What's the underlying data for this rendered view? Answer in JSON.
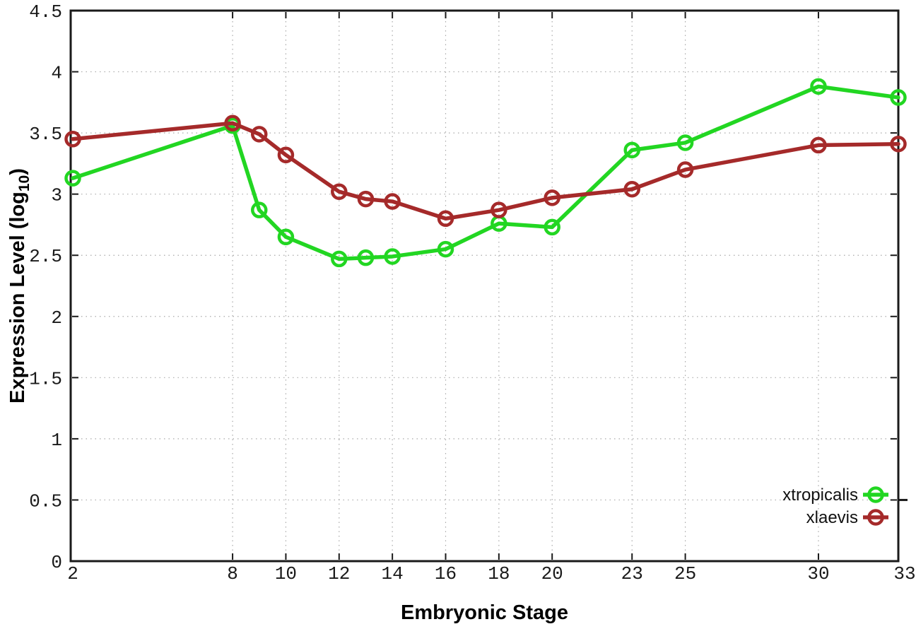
{
  "chart_data": {
    "type": "line",
    "title": "",
    "xlabel": "Embryonic Stage",
    "ylabel": {
      "text": "Expression Level (log10)",
      "prefix": "Expression Level (log",
      "subscript": "10",
      "suffix": ")"
    },
    "x": [
      2,
      8,
      9,
      10,
      12,
      13,
      14,
      16,
      18,
      20,
      23,
      25,
      30,
      33
    ],
    "series": [
      {
        "name": "xtropicalis",
        "color": "#22d622",
        "marker": "open-circle",
        "values": [
          3.13,
          3.56,
          2.87,
          2.65,
          2.47,
          2.48,
          2.49,
          2.55,
          2.76,
          2.73,
          3.36,
          3.42,
          3.88,
          3.79
        ]
      },
      {
        "name": "xlaevis",
        "color": "#a52a2a",
        "marker": "open-circle",
        "values": [
          3.45,
          3.58,
          3.49,
          3.32,
          3.02,
          2.96,
          2.94,
          2.8,
          2.87,
          2.97,
          3.04,
          3.2,
          3.4,
          3.41
        ]
      }
    ],
    "xticks": {
      "values": [
        2,
        8,
        10,
        12,
        14,
        16,
        18,
        20,
        23,
        25,
        30,
        33
      ],
      "labels": [
        "2",
        "8",
        "10",
        "12",
        "14",
        "16",
        "18",
        "20",
        "23",
        "25",
        "30",
        "33"
      ]
    },
    "yticks": {
      "values": [
        0,
        0.5,
        1,
        1.5,
        2,
        2.5,
        3,
        3.5,
        4,
        4.5
      ],
      "labels": [
        "0",
        "0.5",
        "1",
        "1.5",
        "2",
        "2.5",
        "3",
        "3.5",
        "4",
        "4.5"
      ]
    },
    "xlim": [
      1.92,
      33
    ],
    "ylim": [
      0,
      4.5
    ],
    "grid": true,
    "legend_position": "bottom-right"
  },
  "colors": {
    "background": "#ffffff",
    "axis": "#1a1a1a",
    "grid": "#a9a9a9",
    "text": "#1a1a1a"
  }
}
